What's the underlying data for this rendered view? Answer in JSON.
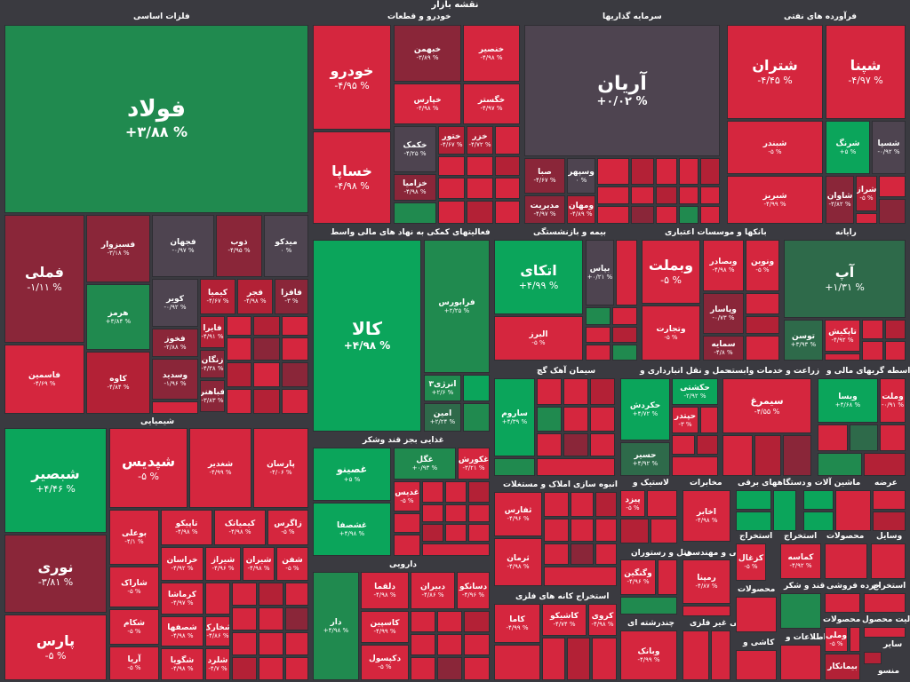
{
  "title": "نقشه بازار",
  "colors": {
    "red": "#d5263e",
    "dark_red": "#8a2639",
    "green": "#0ba55b",
    "dark_green": "#2e6a4a",
    "neutral": "#4e4450"
  },
  "sectors": {
    "metals": "فلزات اساسی",
    "auto": "خودرو و قطعات",
    "invest": "سرمایه گذاریها",
    "petro": "فرآورده های نفتی",
    "chem": "شیمیایی",
    "fin": "فعالیتهای کمکی به نهاد های مالی واسط",
    "insurance": "بیمه و بازنشستگی",
    "banks": "بانکها و موسسات اعتباری",
    "computer": "رایانه",
    "cement": "سیمان آهک گچ",
    "transport": "حمل و نقل انبارداری و",
    "agri": "زراعت و خدمات وابسته",
    "brokers": "واسطه گریهای مالی و",
    "food": "غذایی بجز قند وشکر",
    "realestate": "انبوه سازی املاک و مستغلات",
    "tires": "لاستیک و",
    "media": "مخابرات",
    "devices": "دستگاههای برقی",
    "machinery": "ماشین آلات و",
    "supply": "عرضه",
    "pharma": "دارویی",
    "engineering": "فنی و مهندسی",
    "hotel": "هتل و رستوران",
    "nonmetal": "کانی غیر فلزی",
    "products": "محصولات",
    "other": "سایر",
    "mining": "استخراج کانه های فلزی",
    "multi": "چندرشته ای",
    "ceramic": "کاشی و",
    "info": "اطلاعات و",
    "coal": "استخراج",
    "quarry": "استخراج",
    "extraction": "استخراج",
    "wood": "محصولات",
    "tools": "وسایل",
    "sugar": "قند و شکر",
    "paper": "محصولات",
    "retail": "خرده فروشی",
    "textile": "منسو",
    "heavy": "فعالیت محصول",
    "fz": "فلزی",
    "fin2": "محصولات"
  },
  "tiles": [
    {
      "name": "فولاد",
      "val": "% ۳/۸۸+"
    },
    {
      "name": "فملی",
      "val": "% ۱/۱۱-"
    },
    {
      "name": "فسرب",
      "val": ""
    },
    {
      "name": "فسپا",
      "val": "% ۱۸ه/۲+"
    },
    {
      "name": "فسبزوار",
      "val": "% ۳/۱۸-"
    },
    {
      "name": "فجهان",
      "val": "% ۰/۹۷-"
    },
    {
      "name": "ذوب",
      "val": "% ۴/۹۵-"
    },
    {
      "name": "میدکو",
      "val": "% ۰"
    },
    {
      "name": "هرمز",
      "val": "% ۳/۸۴+"
    },
    {
      "name": "کویر",
      "val": "% ۰/۹۲-"
    },
    {
      "name": "کیمیا",
      "val": "% ۴/۶۷-"
    },
    {
      "name": "فجر",
      "val": "% ۴/۹۸-"
    },
    {
      "name": "فافزا",
      "val": "% ۳-"
    },
    {
      "name": "فایرا",
      "val": "% ۴/۹۱-"
    },
    {
      "name": "فخوز",
      "val": "% ۲/۸۸-"
    },
    {
      "name": "زنگان",
      "val": "% ۴/۳۸-"
    },
    {
      "name": "فاسمین",
      "val": "% ۴/۶۹-"
    },
    {
      "name": "کاوه",
      "val": "% ۴/۸۴-"
    },
    {
      "name": "وسدید",
      "val": "% ۱/۹۶-"
    },
    {
      "name": "فباهنر",
      "val": "% ۳/۸۳-"
    },
    {
      "name": "خودرو",
      "val": "% ۴/۹۵-"
    },
    {
      "name": "خبهمن",
      "val": "% ۳/۸۹-"
    },
    {
      "name": "خنصیر",
      "val": "% ۴/۹۸-"
    },
    {
      "name": "خپارس",
      "val": "% ۴/۹۸-"
    },
    {
      "name": "خگستر",
      "val": "% ۴/۹۷-"
    },
    {
      "name": "خساپا",
      "val": "% ۴/۹۸-"
    },
    {
      "name": "خکمک",
      "val": "% ۴/۲۵-"
    },
    {
      "name": "ختور",
      "val": "% ۴/۶۷-"
    },
    {
      "name": "خزر",
      "val": "% ۴/۷۲-"
    },
    {
      "name": "خزامیا",
      "val": "% ۴/۹۸-"
    },
    {
      "name": "آریان",
      "val": "% ۰/۰۲+"
    },
    {
      "name": "صبا",
      "val": "% ۴/۶۷-"
    },
    {
      "name": "وسپهر",
      "val": "% ۰"
    },
    {
      "name": "مدیریت",
      "val": "% ۴/۹۷-"
    },
    {
      "name": "ومهان",
      "val": "% ۴/۸۹-"
    },
    {
      "name": "شتران",
      "val": "% ۴/۴۵-"
    },
    {
      "name": "شپنا",
      "val": "% ۴/۹۷-"
    },
    {
      "name": "شبندر",
      "val": "% ۵-"
    },
    {
      "name": "شرنگ",
      "val": "% ۵+"
    },
    {
      "name": "شسپا",
      "val": "% ۰/۹۲-"
    },
    {
      "name": "شبریز",
      "val": "% ۴/۹۹-"
    },
    {
      "name": "شاوان",
      "val": "% ۳/۸۲-"
    },
    {
      "name": "شراز",
      "val": "% ۵-"
    },
    {
      "name": "شبصیر",
      "val": "% ۴/۴۶+"
    },
    {
      "name": "شپدیس",
      "val": "% ۵-"
    },
    {
      "name": "شغدیر",
      "val": "% ۴/۹۹-"
    },
    {
      "name": "پارسان",
      "val": "% ۴/۰۶-"
    },
    {
      "name": "بوعلی",
      "val": "% ۴/۱-"
    },
    {
      "name": "تاپیکو",
      "val": "% ۴/۹۸-"
    },
    {
      "name": "کیمیاتک",
      "val": "% ۴/۹۸-"
    },
    {
      "name": "زاگرس",
      "val": "% ۵-"
    },
    {
      "name": "خراسان",
      "val": "% ۴/۹۲-"
    },
    {
      "name": "شیراز",
      "val": "% ۴/۹۶-"
    },
    {
      "name": "شیران",
      "val": "% ۴/۹۸-"
    },
    {
      "name": "شفن",
      "val": "% ۵-"
    },
    {
      "name": "شاراک",
      "val": "% ۵-"
    },
    {
      "name": "کرماشا",
      "val": "% ۴/۹۷-"
    },
    {
      "name": "نوری",
      "val": "% ۳/۸۱-"
    },
    {
      "name": "شکام",
      "val": "% ۵-"
    },
    {
      "name": "شصفها",
      "val": "% ۴/۹۸-"
    },
    {
      "name": "شخارک",
      "val": "% ۴/۸۶-"
    },
    {
      "name": "پارس",
      "val": "% ۵-"
    },
    {
      "name": "آریا",
      "val": "% ۵-"
    },
    {
      "name": "شگویا",
      "val": "% ۴/۹۸-"
    },
    {
      "name": "شلرد",
      "val": "% ۴/۷-"
    },
    {
      "name": "کالا",
      "val": "% ۴/۹۸+"
    },
    {
      "name": "فرابورس",
      "val": "% ۲/۲۵+"
    },
    {
      "name": "انرژی۳",
      "val": "% ۲/۶+"
    },
    {
      "name": "امین",
      "val": "% ۲/۲۴+"
    },
    {
      "name": "اتکای",
      "val": "% ۴/۹۹+"
    },
    {
      "name": "بپاس",
      "val": "% ۰/۲۱+"
    },
    {
      "name": "البرز",
      "val": "% ۵-"
    },
    {
      "name": "وبملت",
      "val": "% ۵-"
    },
    {
      "name": "وبصادر",
      "val": "% ۴/۹۸-"
    },
    {
      "name": "ونوین",
      "val": "% ۵-"
    },
    {
      "name": "وپاسار",
      "val": "% ۰/۷۳-"
    },
    {
      "name": "وتجارت",
      "val": "% ۵-"
    },
    {
      "name": "سمایه",
      "val": "% ۴/۸-"
    },
    {
      "name": "آپ",
      "val": "% ۱/۳۱+"
    },
    {
      "name": "توسن",
      "val": "% ۳/۹۳+"
    },
    {
      "name": "تاپکیش",
      "val": "% ۴/۹۲-"
    },
    {
      "name": "ساروم",
      "val": "% ۴/۳۹+"
    },
    {
      "name": "حکشتی",
      "val": "% ۲/۹۲-"
    },
    {
      "name": "حکردش",
      "val": "% ۴/۷۲+"
    },
    {
      "name": "حپتدر",
      "val": "% ۳-"
    },
    {
      "name": "حسیر",
      "val": "% ۴/۹۲+"
    },
    {
      "name": "سیمرغ",
      "val": "% ۴/۵۵-"
    },
    {
      "name": "ویسا",
      "val": "% ۴/۶۸+"
    },
    {
      "name": "وملت",
      "val": "% ۰/۹۱-"
    },
    {
      "name": "غصینو",
      "val": "% ۵+"
    },
    {
      "name": "غگل",
      "val": "% ۰/۹۳+"
    },
    {
      "name": "غکورش",
      "val": "% ۳/۲۱-"
    },
    {
      "name": "غدیس",
      "val": "% ۵-"
    },
    {
      "name": "غشصفا",
      "val": "% ۴/۹۸+"
    },
    {
      "name": "ثفارس",
      "val": "% ۴/۹۶-"
    },
    {
      "name": "ثرمان",
      "val": "% ۴/۹۸-"
    },
    {
      "name": "پیزد",
      "val": "% ۵-"
    },
    {
      "name": "اخابر",
      "val": "% ۴/۹۸-"
    },
    {
      "name": "کزغال",
      "val": "% ۵-"
    },
    {
      "name": "کماسه",
      "val": "% ۴/۹۲-"
    },
    {
      "name": "دلقما",
      "val": "% ۴/۹۸-"
    },
    {
      "name": "دبیران",
      "val": "% ۴/۸۶-"
    },
    {
      "name": "دسانکو",
      "val": "% ۴/۹۶-"
    },
    {
      "name": "کاسپین",
      "val": "% ۴/۹۹-"
    },
    {
      "name": "دکپسول",
      "val": "% ۵-"
    },
    {
      "name": "دار",
      "val": "% ۴/۹۸+"
    },
    {
      "name": "وگنگین",
      "val": "% ۴/۹۶-"
    },
    {
      "name": "رمپنا",
      "val": "% ۴/۸۷-"
    },
    {
      "name": "کاما",
      "val": "% ۴/۹۹-"
    },
    {
      "name": "کاشیکو",
      "val": "% ۴/۷۴-"
    },
    {
      "name": "کروی",
      "val": "% ۴/۹۸-"
    },
    {
      "name": "وبانک",
      "val": "% ۴/۹۹-"
    },
    {
      "name": "وملی",
      "val": "% ۵-"
    },
    {
      "name": "بیمانکار",
      "val": ""
    }
  ]
}
